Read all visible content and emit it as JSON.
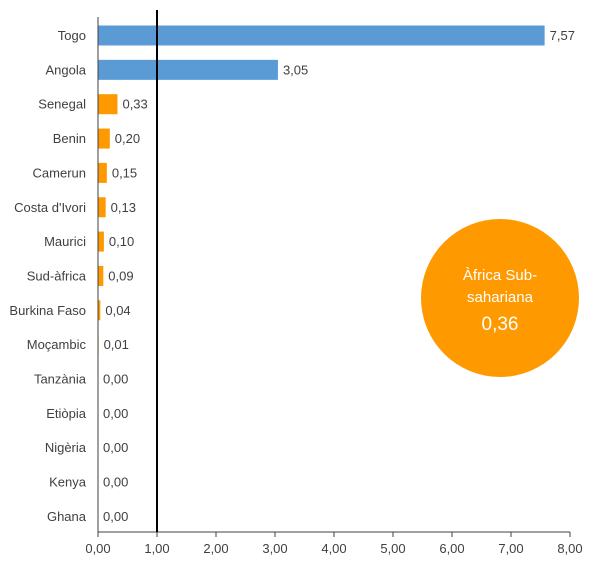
{
  "chart_data": {
    "type": "bar",
    "orientation": "horizontal",
    "categories": [
      "Togo",
      "Angola",
      "Senegal",
      "Benin",
      "Camerun",
      "Costa d'Ivori",
      "Maurici",
      "Sud-àfrica",
      "Burkina Faso",
      "Moçambic",
      "Tanzània",
      "Etiòpia",
      "Nigèria",
      "Kenya",
      "Ghana"
    ],
    "values": [
      7.57,
      3.05,
      0.33,
      0.2,
      0.15,
      0.13,
      0.1,
      0.09,
      0.04,
      0.01,
      0.0,
      0.0,
      0.0,
      0.0,
      0.0
    ],
    "value_labels": [
      "7,57",
      "3,05",
      "0,33",
      "0,20",
      "0,15",
      "0,13",
      "0,10",
      "0,09",
      "0,04",
      "0,01",
      "0,00",
      "0,00",
      "0,00",
      "0,00",
      "0,00"
    ],
    "bar_colors": [
      "#5b9bd5",
      "#5b9bd5",
      "#ff9900",
      "#ff9900",
      "#ff9900",
      "#ff9900",
      "#ff9900",
      "#ff9900",
      "#ff9900",
      "#ff9900",
      "#ff9900",
      "#ff9900",
      "#ff9900",
      "#ff9900",
      "#ff9900"
    ],
    "xlim": [
      0,
      8
    ],
    "xticks": [
      0,
      1,
      2,
      3,
      4,
      5,
      6,
      7,
      8
    ],
    "xtick_labels": [
      "0,00",
      "1,00",
      "2,00",
      "3,00",
      "4,00",
      "5,00",
      "6,00",
      "7,00",
      "8,00"
    ],
    "reference_line": 1.0,
    "title": "",
    "xlabel": "",
    "ylabel": "",
    "annotation": {
      "line1": "Àfrica Sub-",
      "line2": "sahariana",
      "value": "0,36",
      "color": "#ff9900"
    }
  },
  "colors": {
    "axis": "#404040",
    "text": "#404040",
    "reference_line": "#000000"
  }
}
